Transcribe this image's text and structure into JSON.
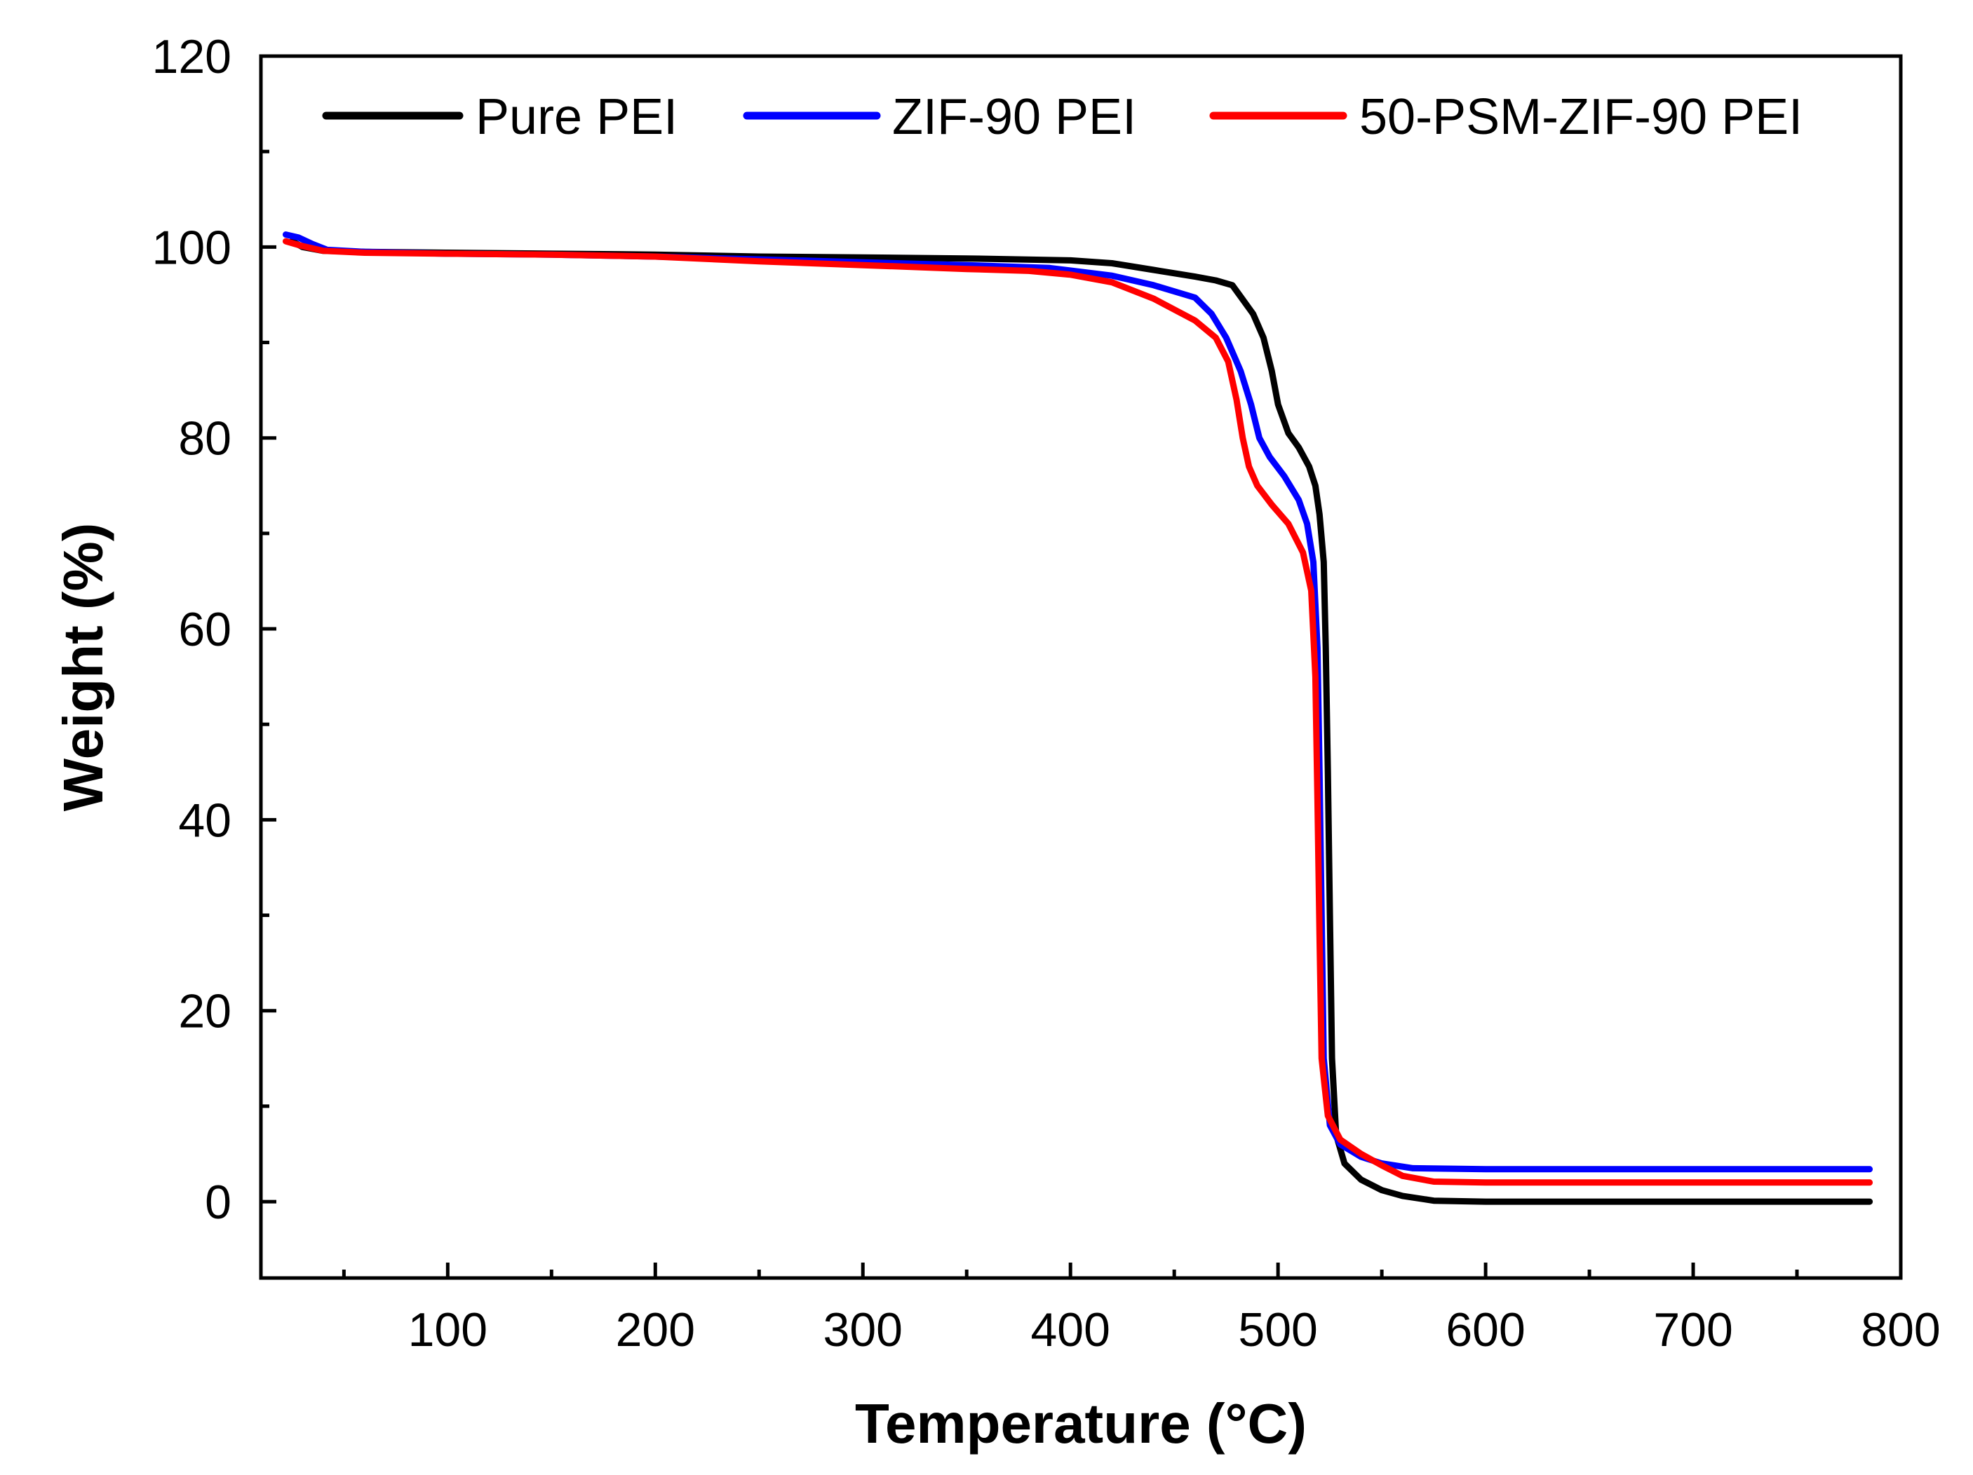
{
  "chart_data": {
    "type": "line",
    "xlabel": "Temperature (°C)",
    "ylabel": "Weight (%)",
    "xlim": [
      10,
      800
    ],
    "ylim": [
      -8,
      120
    ],
    "xticks": [
      100,
      200,
      300,
      400,
      500,
      600,
      700,
      800
    ],
    "yticks": [
      0,
      20,
      40,
      60,
      80,
      100,
      120
    ],
    "grid": false,
    "legend_position": "top",
    "series": [
      {
        "name": "Pure PEI",
        "color": "#000000",
        "points": [
          [
            25,
            100.6
          ],
          [
            30,
            100.0
          ],
          [
            40,
            99.6
          ],
          [
            60,
            99.5
          ],
          [
            100,
            99.4
          ],
          [
            150,
            99.3
          ],
          [
            200,
            99.2
          ],
          [
            250,
            99.0
          ],
          [
            300,
            98.9
          ],
          [
            350,
            98.8
          ],
          [
            400,
            98.6
          ],
          [
            420,
            98.3
          ],
          [
            440,
            97.6
          ],
          [
            460,
            96.9
          ],
          [
            470,
            96.5
          ],
          [
            478,
            96.0
          ],
          [
            482,
            94.8
          ],
          [
            488,
            93.0
          ],
          [
            493,
            90.5
          ],
          [
            497,
            87.0
          ],
          [
            500,
            83.5
          ],
          [
            505,
            80.5
          ],
          [
            510,
            79.0
          ],
          [
            515,
            77.0
          ],
          [
            518,
            75.0
          ],
          [
            520,
            72.0
          ],
          [
            522,
            67.0
          ],
          [
            523,
            58.0
          ],
          [
            524,
            45.0
          ],
          [
            525,
            30.0
          ],
          [
            526,
            15.0
          ],
          [
            528,
            7.0
          ],
          [
            532,
            4.0
          ],
          [
            540,
            2.3
          ],
          [
            550,
            1.2
          ],
          [
            560,
            0.6
          ],
          [
            575,
            0.1
          ],
          [
            600,
            0.0
          ],
          [
            700,
            0.0
          ],
          [
            785,
            0.0
          ]
        ]
      },
      {
        "name": "ZIF-90 PEI",
        "color": "#0000ff",
        "points": [
          [
            22,
            101.3
          ],
          [
            28,
            101.0
          ],
          [
            35,
            100.3
          ],
          [
            42,
            99.7
          ],
          [
            60,
            99.5
          ],
          [
            100,
            99.3
          ],
          [
            150,
            99.2
          ],
          [
            200,
            99.0
          ],
          [
            250,
            98.7
          ],
          [
            300,
            98.4
          ],
          [
            350,
            98.1
          ],
          [
            390,
            97.8
          ],
          [
            420,
            97.0
          ],
          [
            440,
            96.0
          ],
          [
            460,
            94.7
          ],
          [
            468,
            93.0
          ],
          [
            475,
            90.5
          ],
          [
            482,
            87.0
          ],
          [
            487,
            83.5
          ],
          [
            491,
            80.0
          ],
          [
            496,
            78.0
          ],
          [
            503,
            76.0
          ],
          [
            510,
            73.5
          ],
          [
            514,
            71.0
          ],
          [
            517,
            67.0
          ],
          [
            519,
            58.0
          ],
          [
            520,
            45.0
          ],
          [
            521,
            30.0
          ],
          [
            522,
            15.0
          ],
          [
            525,
            8.0
          ],
          [
            530,
            6.0
          ],
          [
            540,
            4.7
          ],
          [
            550,
            4.0
          ],
          [
            565,
            3.5
          ],
          [
            600,
            3.4
          ],
          [
            700,
            3.4
          ],
          [
            785,
            3.4
          ]
        ]
      },
      {
        "name": "50-PSM-ZIF-90 PEI",
        "color": "#ff0000",
        "points": [
          [
            22,
            100.6
          ],
          [
            30,
            100.1
          ],
          [
            40,
            99.6
          ],
          [
            60,
            99.4
          ],
          [
            100,
            99.3
          ],
          [
            150,
            99.2
          ],
          [
            200,
            99.0
          ],
          [
            250,
            98.5
          ],
          [
            300,
            98.1
          ],
          [
            350,
            97.7
          ],
          [
            380,
            97.5
          ],
          [
            400,
            97.1
          ],
          [
            420,
            96.3
          ],
          [
            440,
            94.6
          ],
          [
            460,
            92.3
          ],
          [
            470,
            90.5
          ],
          [
            476,
            88.0
          ],
          [
            480,
            84.0
          ],
          [
            483,
            80.0
          ],
          [
            486,
            77.0
          ],
          [
            490,
            75.0
          ],
          [
            497,
            73.0
          ],
          [
            505,
            71.0
          ],
          [
            512,
            68.0
          ],
          [
            516,
            64.0
          ],
          [
            518,
            55.0
          ],
          [
            519,
            42.0
          ],
          [
            520,
            28.0
          ],
          [
            521,
            15.0
          ],
          [
            524,
            9.0
          ],
          [
            530,
            6.5
          ],
          [
            540,
            5.0
          ],
          [
            550,
            3.8
          ],
          [
            560,
            2.7
          ],
          [
            575,
            2.1
          ],
          [
            600,
            2.0
          ],
          [
            700,
            2.0
          ],
          [
            785,
            2.0
          ]
        ]
      }
    ]
  }
}
